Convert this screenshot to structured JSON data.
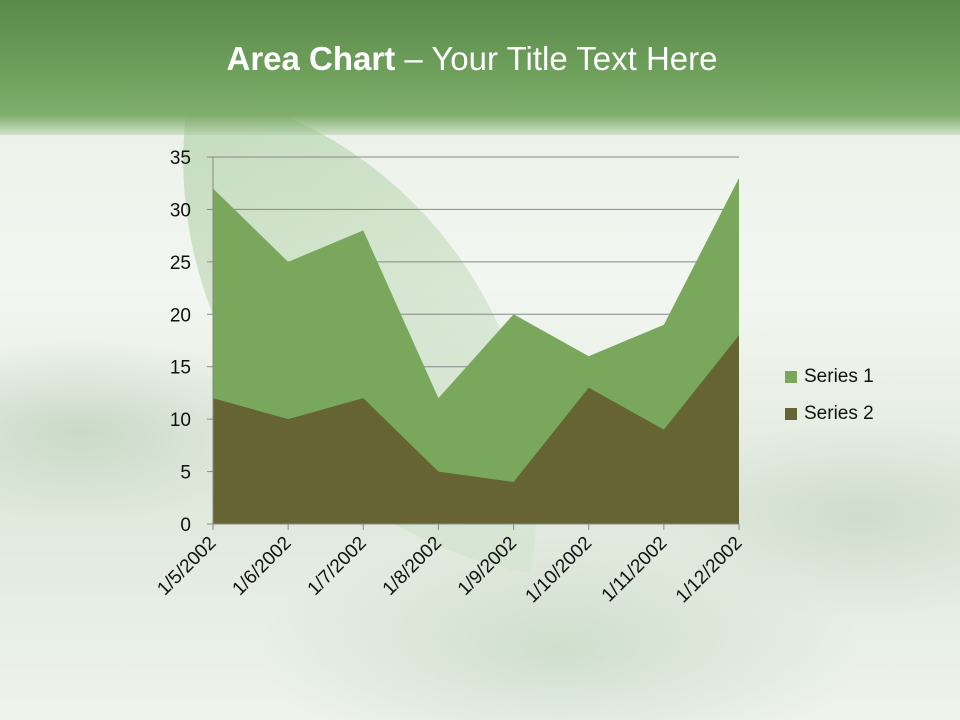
{
  "title": {
    "bold": "Area Chart",
    "rest": " – Your Title Text Here"
  },
  "chart_data": {
    "type": "area",
    "title": "Area Chart – Your Title Text Here",
    "categories": [
      "1/5/2002",
      "1/6/2002",
      "1/7/2002",
      "1/8/2002",
      "1/9/2002",
      "1/10/2002",
      "1/11/2002",
      "1/12/2002"
    ],
    "series": [
      {
        "name": "Series 1",
        "values": [
          32,
          25,
          28,
          12,
          20,
          16,
          19,
          33
        ],
        "color": "#79a85c"
      },
      {
        "name": "Series 2",
        "values": [
          12,
          10,
          12,
          5,
          4,
          13,
          9,
          18
        ],
        "color": "#676434"
      }
    ],
    "ylim": [
      0,
      35
    ],
    "yticks": [
      0,
      5,
      10,
      15,
      20,
      25,
      30,
      35
    ],
    "grid": true,
    "legend": "right"
  }
}
